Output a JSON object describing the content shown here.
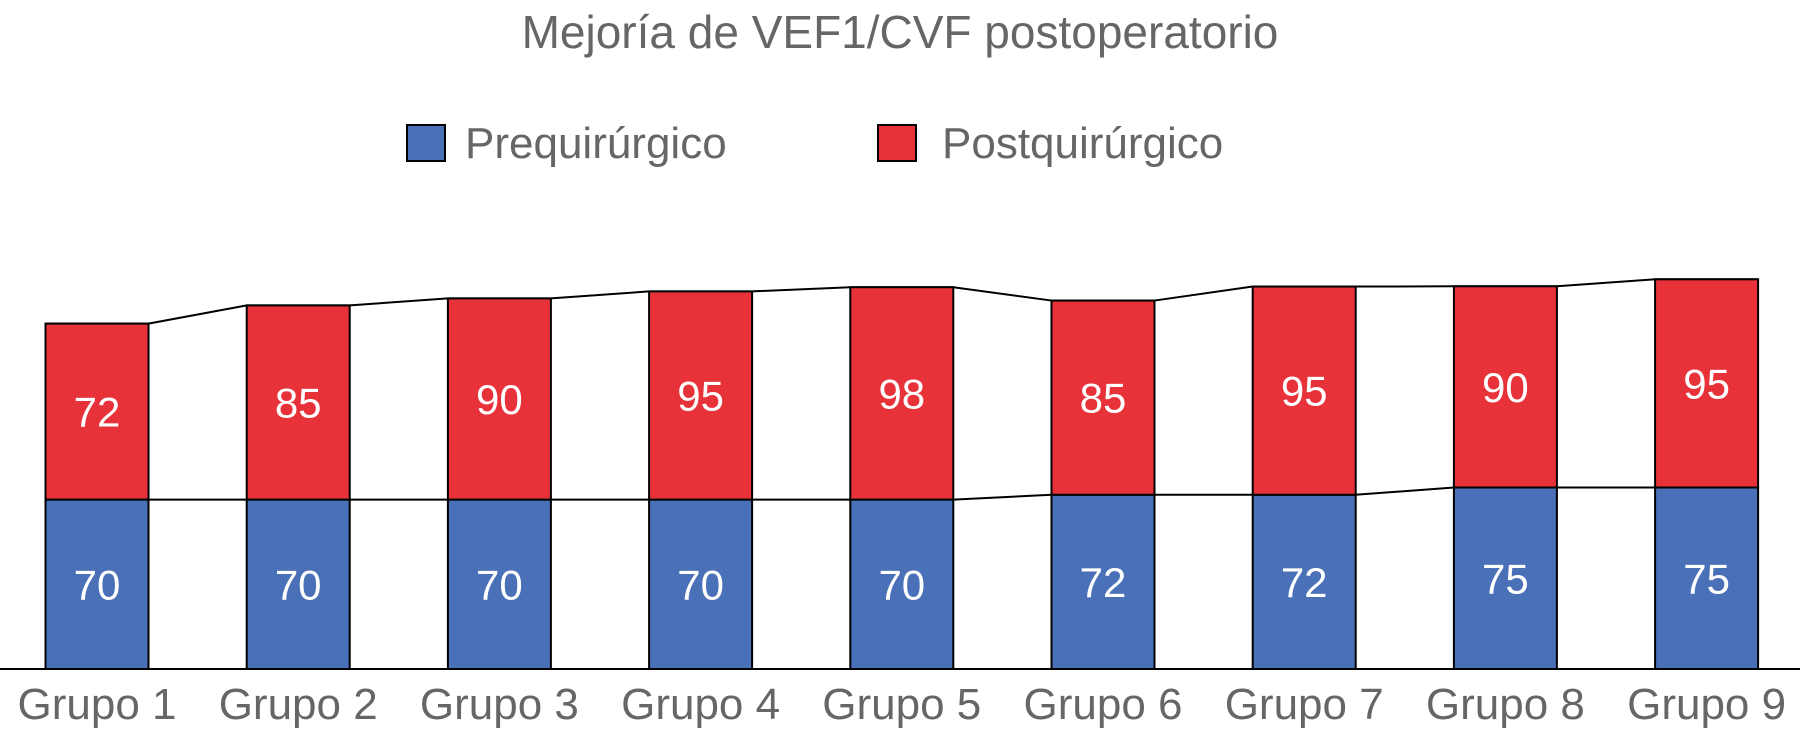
{
  "chart_data": {
    "type": "bar",
    "stacked": true,
    "title": "Mejoría de VEF1/CVF postoperatorio",
    "categories": [
      "Grupo 1",
      "Grupo 2",
      "Grupo 3",
      "Grupo 4",
      "Grupo 5",
      "Grupo 6",
      "Grupo 7",
      "Grupo 8",
      "Grupo 9"
    ],
    "series": [
      {
        "name": "Prequirúrgico",
        "color": "#4a70b8",
        "values": [
          70,
          70,
          70,
          70,
          70,
          72,
          72,
          75,
          75
        ]
      },
      {
        "name": "Postquirúrgico",
        "color": "#e8323a",
        "values": [
          72,
          85,
          90,
          95,
          98,
          85,
          95,
          90,
          95
        ]
      }
    ],
    "xlabel": "",
    "ylabel": "",
    "legend_position": "top-center",
    "series_lines": true,
    "grid": false
  }
}
